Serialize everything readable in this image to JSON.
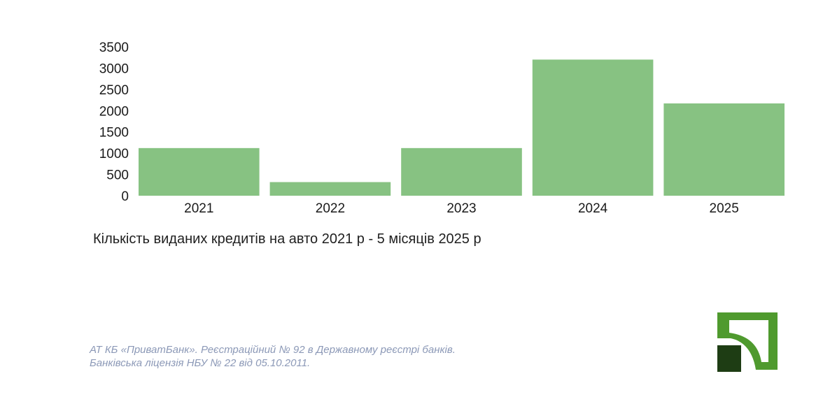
{
  "chart_data": {
    "type": "bar",
    "categories": [
      "2021",
      "2022",
      "2023",
      "2024",
      "2025"
    ],
    "values": [
      1120,
      320,
      1120,
      3200,
      2170
    ],
    "yticks": [
      "0",
      "500",
      "1000",
      "1500",
      "2000",
      "2500",
      "3000",
      "3500"
    ],
    "ylim": [
      0,
      3500
    ],
    "title": "Кількість виданих кредитів на авто 2021 р - 5 місяців 2025 р",
    "xlabel": "",
    "ylabel": "",
    "grid": false,
    "legend": "none",
    "bar_color": "#87c282"
  },
  "footer": {
    "legal_line1": "АТ КБ «ПриватБанк». Реєстраційний № 92 в Державному реєстрі банків.",
    "legal_line2": "Банківська ліцензія НБУ № 22 від 05.10.2011."
  },
  "logo": {
    "icon": "privatbank-logo-icon",
    "colors": {
      "light_green": "#4f9a2e",
      "dark_green": "#1e3d14"
    }
  }
}
